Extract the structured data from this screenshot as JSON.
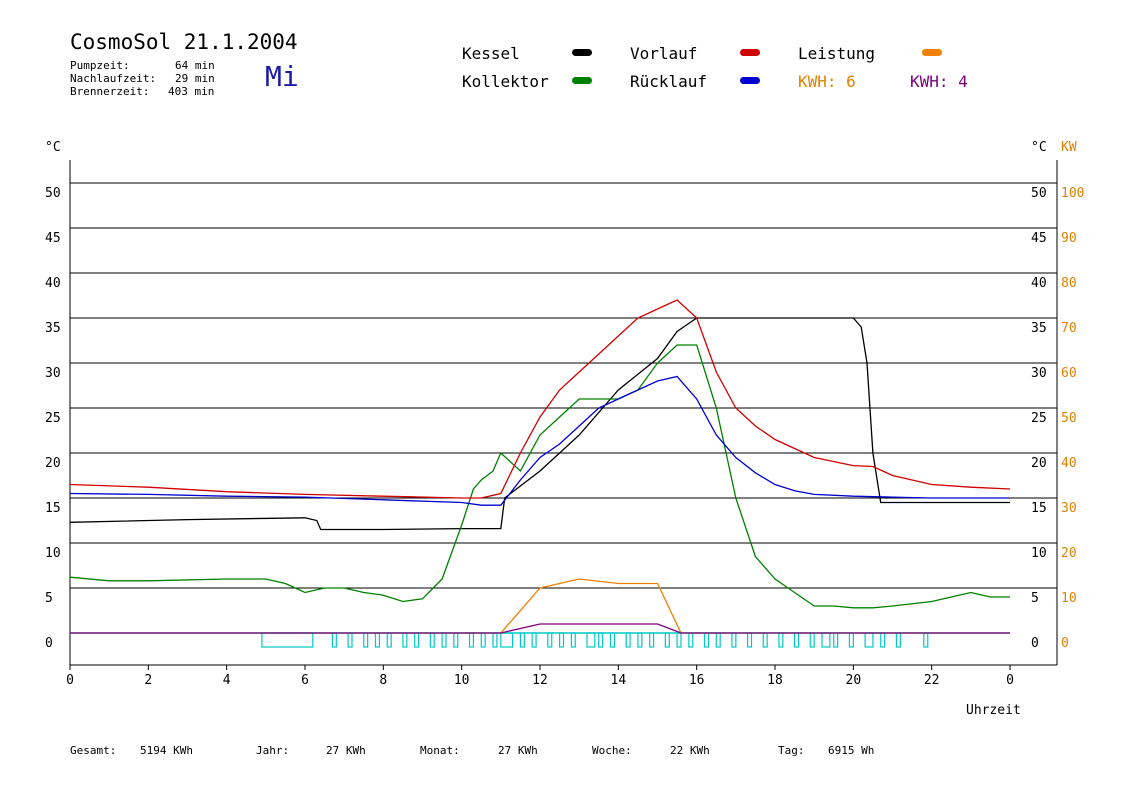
{
  "header": {
    "title": "CosmoSol 21.1.2004",
    "pumpzeit_label": "Pumpzeit:",
    "pumpzeit_value": "64 min",
    "nachlaufzeit_label": "Nachlaufzeit:",
    "nachlaufzeit_value": "29 min",
    "brennerzeit_label": "Brennerzeit:",
    "brennerzeit_value": "403 min",
    "weekday": "Mi"
  },
  "legend": {
    "kessel": "Kessel",
    "kollektor": "Kollektor",
    "vorlauf": "Vorlauf",
    "ruecklauf": "Rücklauf",
    "leistung": "Leistung",
    "kwh1": "KWH: 6",
    "kwh2": "KWH: 4"
  },
  "footer": {
    "gesamt_label": "Gesamt:",
    "gesamt_value": "5194 KWh",
    "jahr_label": "Jahr:",
    "jahr_value": "27 KWh",
    "monat_label": "Monat:",
    "monat_value": "27 KWh",
    "woche_label": "Woche:",
    "woche_value": "22 KWh",
    "tag_label": "Tag:",
    "tag_value": "6915 Wh"
  },
  "colors": {
    "kessel": "#000000",
    "kollektor": "#008000",
    "vorlauf": "#d00000",
    "ruecklauf": "#0000d0",
    "leistung": "#f08000",
    "kwh2": "#800080",
    "pump": "#00c8c8"
  },
  "chart_data": {
    "type": "line",
    "xlabel": "Uhrzeit",
    "ylabel_left": "°C",
    "ylabel_right": "°C",
    "ylabel_right2": "KW",
    "xlim": [
      0,
      24
    ],
    "ylim": [
      0,
      50
    ],
    "y2lim": [
      0,
      100
    ],
    "x_ticks": [
      "0",
      "2",
      "4",
      "6",
      "8",
      "10",
      "12",
      "14",
      "16",
      "18",
      "20",
      "22",
      "0"
    ],
    "y_ticks": [
      "0",
      "5",
      "10",
      "15",
      "20",
      "25",
      "30",
      "35",
      "40",
      "45",
      "50"
    ],
    "y2_ticks": [
      "0",
      "10",
      "20",
      "30",
      "40",
      "50",
      "60",
      "70",
      "80",
      "90",
      "100"
    ],
    "grid": true,
    "series": [
      {
        "name": "Kessel",
        "color": "#000000",
        "x": [
          0,
          3,
          6,
          6.3,
          6.4,
          8,
          10,
          11,
          11.1,
          12,
          13,
          14,
          15,
          15.5,
          16,
          16.5,
          19,
          20,
          20.2,
          20.35,
          20.5,
          20.7,
          22,
          24
        ],
        "y": [
          12.3,
          12.6,
          12.8,
          12.5,
          11.5,
          11.5,
          11.6,
          11.6,
          15,
          18,
          22,
          27,
          30.5,
          33.5,
          35,
          35,
          35,
          35,
          34,
          30,
          20,
          14.5,
          14.5,
          14.5
        ]
      },
      {
        "name": "Kollektor",
        "color": "#008000",
        "x": [
          0,
          1,
          2,
          4,
          5,
          5.5,
          6,
          6.5,
          7,
          7.5,
          8,
          8.5,
          9,
          9.5,
          10,
          10.3,
          10.5,
          10.8,
          11,
          11.5,
          12,
          12.5,
          13,
          13.5,
          14,
          14.5,
          15,
          15.5,
          16,
          16.5,
          17,
          17.5,
          18,
          18.5,
          19,
          19.5,
          20,
          20.5,
          21,
          22,
          22.5,
          23,
          23.5,
          24
        ],
        "y": [
          6.2,
          5.8,
          5.8,
          6,
          6,
          5.5,
          4.5,
          5,
          5,
          4.5,
          4.2,
          3.5,
          3.8,
          6,
          12,
          16,
          17,
          18,
          20,
          18,
          22,
          24,
          26,
          26,
          26,
          27,
          30,
          32,
          32,
          25,
          15,
          8.5,
          6,
          4.5,
          3,
          3,
          2.8,
          2.8,
          3,
          3.5,
          4,
          4.5,
          4,
          4
        ]
      },
      {
        "name": "Vorlauf",
        "color": "#d00000",
        "x": [
          0,
          2,
          4,
          6,
          8,
          10,
          10.5,
          11,
          11.5,
          12,
          12.5,
          13,
          13.5,
          14,
          14.5,
          15,
          15.5,
          16,
          16.5,
          17,
          17.5,
          18,
          18.5,
          19,
          20,
          20.5,
          21,
          22,
          23,
          24
        ],
        "y": [
          16.5,
          16.2,
          15.7,
          15.4,
          15.2,
          15,
          15,
          15.5,
          20,
          24,
          27,
          29,
          31,
          33,
          35,
          36,
          37,
          35,
          29,
          25,
          23,
          21.5,
          20.5,
          19.5,
          18.6,
          18.5,
          17.5,
          16.5,
          16.2,
          16
        ]
      },
      {
        "name": "Rücklauf",
        "color": "#0000d0",
        "x": [
          0,
          2,
          4,
          6,
          8,
          10,
          10.5,
          11,
          11.5,
          12,
          12.5,
          13,
          13.5,
          14,
          14.5,
          15,
          15.5,
          16,
          16.5,
          17,
          17.5,
          18,
          18.5,
          19,
          20,
          21,
          22,
          23,
          24
        ],
        "y": [
          15.5,
          15.4,
          15.2,
          15.1,
          14.8,
          14.5,
          14.2,
          14.2,
          17,
          19.5,
          21,
          23,
          25,
          26,
          27,
          28,
          28.5,
          26,
          22,
          19.5,
          17.8,
          16.5,
          15.8,
          15.4,
          15.2,
          15.1,
          15,
          15,
          15
        ]
      },
      {
        "name": "Leistung",
        "color": "#f08000",
        "x": [
          0,
          11,
          12,
          13,
          14,
          15,
          15.6,
          16,
          24
        ],
        "y": [
          0,
          0,
          5,
          6,
          5.5,
          5.5,
          0,
          0,
          0
        ]
      },
      {
        "name": "KWH: 4",
        "color": "#800080",
        "x": [
          0,
          11,
          12,
          13,
          14,
          15,
          15.6,
          16,
          24
        ],
        "y": [
          0,
          0,
          1,
          1,
          1,
          1,
          0,
          0,
          0
        ]
      }
    ],
    "pump_cycles": [
      [
        4.9,
        6.2
      ],
      [
        6.7,
        6.8
      ],
      [
        7.1,
        7.2
      ],
      [
        7.5,
        7.6
      ],
      [
        7.8,
        7.9
      ],
      [
        8.1,
        8.2
      ],
      [
        8.5,
        8.6
      ],
      [
        8.8,
        8.9
      ],
      [
        9.2,
        9.3
      ],
      [
        9.5,
        9.6
      ],
      [
        9.8,
        9.9
      ],
      [
        10.2,
        10.3
      ],
      [
        10.5,
        10.6
      ],
      [
        10.8,
        10.9
      ],
      [
        11.0,
        11.3
      ],
      [
        11.5,
        11.6
      ],
      [
        11.8,
        11.9
      ],
      [
        12.2,
        12.3
      ],
      [
        12.5,
        12.6
      ],
      [
        12.8,
        12.9
      ],
      [
        13.2,
        13.4
      ],
      [
        13.5,
        13.6
      ],
      [
        13.8,
        13.9
      ],
      [
        14.2,
        14.3
      ],
      [
        14.5,
        14.6
      ],
      [
        14.8,
        14.9
      ],
      [
        15.2,
        15.3
      ],
      [
        15.5,
        15.6
      ],
      [
        15.8,
        15.9
      ],
      [
        16.2,
        16.3
      ],
      [
        16.5,
        16.6
      ],
      [
        16.9,
        17.0
      ],
      [
        17.3,
        17.4
      ],
      [
        17.7,
        17.8
      ],
      [
        18.1,
        18.2
      ],
      [
        18.5,
        18.6
      ],
      [
        18.9,
        19.0
      ],
      [
        19.2,
        19.4
      ],
      [
        19.5,
        19.6
      ],
      [
        19.9,
        20.0
      ],
      [
        20.3,
        20.5
      ],
      [
        20.7,
        20.8
      ],
      [
        21.1,
        21.2
      ],
      [
        21.8,
        21.9
      ]
    ]
  }
}
